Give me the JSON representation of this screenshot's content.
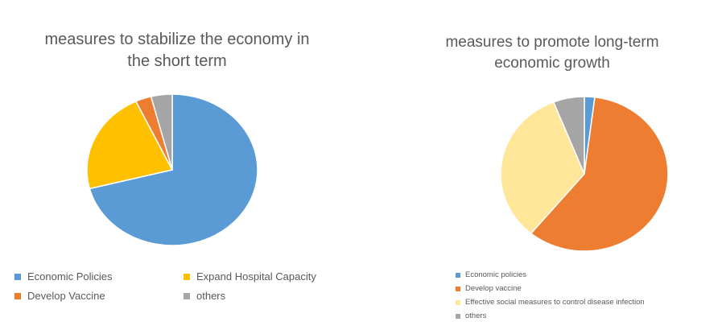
{
  "chart_data": [
    {
      "type": "pie",
      "title": "measures to stabilize the economy in the short term",
      "title_lines": [
        "measures to stabilize the economy in",
        "the short term"
      ],
      "legend_position": "bottom",
      "start_angle_deg": 0,
      "direction": "clockwise",
      "slices": [
        {
          "label": "Economic Policies",
          "value": 71,
          "color": "#5B9BD5"
        },
        {
          "label": "Expand Hospital Capacity",
          "value": 22,
          "color": "#FFC000"
        },
        {
          "label": "Develop Vaccine",
          "value": 3,
          "color": "#ED7D31"
        },
        {
          "label": "others",
          "value": 4,
          "color": "#A5A5A5"
        }
      ]
    },
    {
      "type": "pie",
      "title": "measures to promote long-term economic growth",
      "title_lines": [
        "measures to promote long-term",
        "economic growth"
      ],
      "legend_position": "bottom",
      "start_angle_deg": 0,
      "direction": "clockwise",
      "slices": [
        {
          "label": "Economic policies",
          "value": 2,
          "color": "#5B9BD5"
        },
        {
          "label": "Develop vaccine",
          "value": 59,
          "color": "#ED7D31"
        },
        {
          "label": "Effective social measures to control disease infection",
          "value": 33,
          "color": "#FFE699"
        },
        {
          "label": "others",
          "value": 6,
          "color": "#A5A5A5"
        }
      ]
    }
  ]
}
